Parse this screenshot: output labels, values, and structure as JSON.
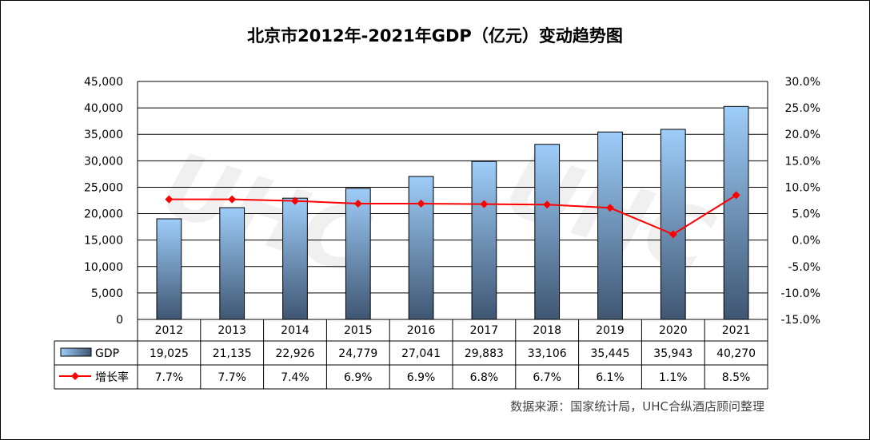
{
  "chart_data": {
    "type": "bar",
    "title": "北京市2012年-2021年GDP（亿元）变动趋势图",
    "categories": [
      "2012",
      "2013",
      "2014",
      "2015",
      "2016",
      "2017",
      "2018",
      "2019",
      "2020",
      "2021"
    ],
    "series": [
      {
        "name": "GDP",
        "type": "bar",
        "axis": "left",
        "values": [
          19025,
          21135,
          22926,
          24779,
          27041,
          29883,
          33106,
          35445,
          35943,
          40270
        ],
        "labels": [
          "19,025",
          "21,135",
          "22,926",
          "24,779",
          "27,041",
          "29,883",
          "33,106",
          "35,445",
          "35,943",
          "40,270"
        ]
      },
      {
        "name": "增长率",
        "type": "line",
        "axis": "right",
        "values": [
          7.7,
          7.7,
          7.4,
          6.9,
          6.9,
          6.8,
          6.7,
          6.1,
          1.1,
          8.5
        ],
        "labels": [
          "7.7%",
          "7.7%",
          "7.4%",
          "6.9%",
          "6.9%",
          "6.8%",
          "6.7%",
          "6.1%",
          "1.1%",
          "8.5%"
        ]
      }
    ],
    "ylim_left": [
      0,
      45000
    ],
    "ylim_right": [
      -15,
      30
    ],
    "yticks_left": [
      "0",
      "5,000",
      "10,000",
      "15,000",
      "20,000",
      "25,000",
      "30,000",
      "35,000",
      "40,000",
      "45,000"
    ],
    "yticks_right": [
      "-15.0%",
      "-10.0%",
      "-5.0%",
      "0.0%",
      "5.0%",
      "10.0%",
      "15.0%",
      "20.0%",
      "25.0%",
      "30.0%"
    ],
    "grid": true,
    "legend": "data-table"
  },
  "source_note": "数据来源：国家统计局，UHC合纵酒店顾问整理",
  "watermark": "UHC 合纵酒店顾问 UNITED HOTEL CONSULTANCY",
  "colors": {
    "bar_top": "#9ecdf9",
    "bar_bottom": "#3f5672",
    "line": "#ff0000",
    "grid": "#000000"
  }
}
